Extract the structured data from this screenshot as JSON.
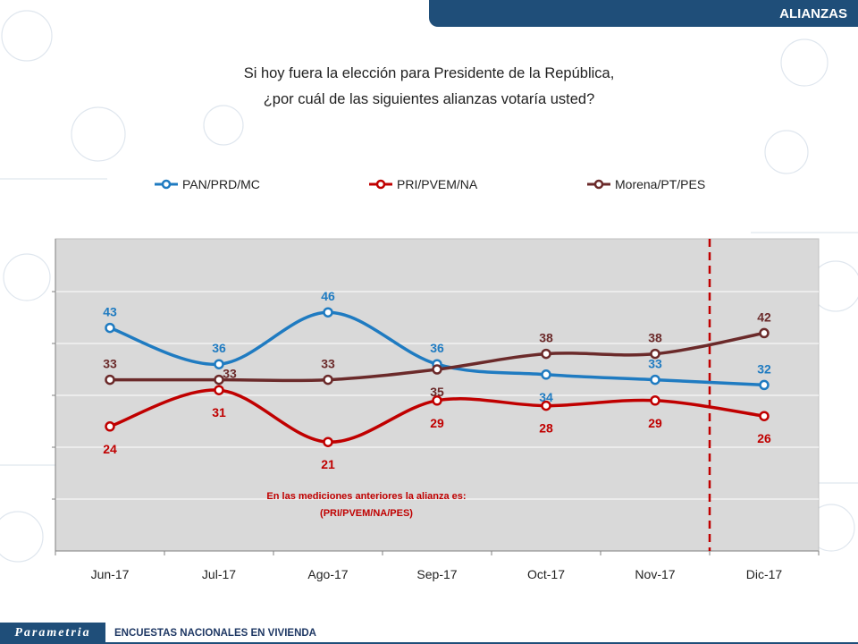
{
  "header": {
    "title": "ALIANZAS"
  },
  "question": {
    "line1": "Si hoy fuera la elección para Presidente de la República,",
    "line2": "¿por cuál de las siguientes alianzas votaría usted?"
  },
  "footer": {
    "brand": "Parametria",
    "caption": "ENCUESTAS NACIONALES EN VIVIENDA"
  },
  "chart_data": {
    "type": "line",
    "categories": [
      "Jun-17",
      "Jul-17",
      "Ago-17",
      "Sep-17",
      "Oct-17",
      "Nov-17",
      "Dic-17"
    ],
    "series": [
      {
        "name": "PAN/PRD/MC",
        "color": "#1f7bc1",
        "values": [
          43,
          36,
          46,
          36,
          34,
          33,
          32
        ]
      },
      {
        "name": "PRI/PVEM/NA",
        "color": "#c00000",
        "values": [
          24,
          31,
          21,
          29,
          28,
          29,
          26
        ]
      },
      {
        "name": "Morena/PT/PES",
        "color": "#6b2a2a",
        "values": [
          33,
          33,
          33,
          35,
          38,
          38,
          42
        ]
      }
    ],
    "annotation": {
      "line1": "En las mediciones anteriores la alianza es:",
      "line2": "(PRI/PVEM/NA/PES)",
      "color": "#c00000"
    },
    "divider": {
      "between": [
        "Nov-17",
        "Dic-17"
      ],
      "color": "#c00000",
      "style": "dashed"
    },
    "grid": true,
    "legend_position": "top",
    "plot_background": "#d9d9d9"
  }
}
